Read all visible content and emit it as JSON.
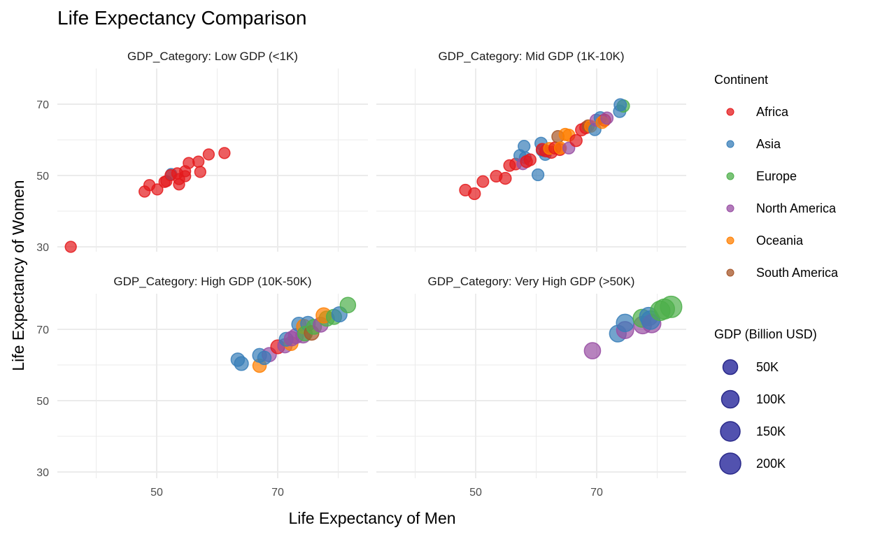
{
  "chart_data": {
    "type": "scatter",
    "title": "Life Expectancy Comparison",
    "xlabel": "Life Expectancy of Men",
    "ylabel": "Life Expectancy of Women",
    "xlim": [
      33,
      85
    ],
    "ylim": [
      29,
      79
    ],
    "x_ticks": [
      50,
      70
    ],
    "y_ticks": [
      30,
      50,
      70
    ],
    "x_tick_labels": [
      "50",
      "70"
    ],
    "y_tick_labels": [
      "30",
      "50",
      "70"
    ],
    "grid": true,
    "facet_variable": "GDP_Category",
    "legend_placement": "right",
    "color_legend": {
      "title": "Continent",
      "entries": [
        {
          "label": "Africa",
          "color": "#e41a1c"
        },
        {
          "label": "Asia",
          "color": "#377eb8"
        },
        {
          "label": "Europe",
          "color": "#4daf4a"
        },
        {
          "label": "North America",
          "color": "#984ea3"
        },
        {
          "label": "Oceania",
          "color": "#ff7f00"
        },
        {
          "label": "South America",
          "color": "#a65628"
        }
      ]
    },
    "size_legend": {
      "title": "GDP (Billion USD)",
      "entries": [
        {
          "label": "50K",
          "value": 50000
        },
        {
          "label": "100K",
          "value": 100000
        },
        {
          "label": "150K",
          "value": 150000
        },
        {
          "label": "200K",
          "value": 200000
        }
      ],
      "fill_color": "#3f3fa6"
    },
    "panels": [
      {
        "strip": "GDP_Category: Low GDP (<1K)",
        "points": [
          {
            "c": "Africa",
            "x": 35.8,
            "y": 30.0,
            "g": 600
          },
          {
            "c": "Africa",
            "x": 48.0,
            "y": 45.5,
            "g": 600
          },
          {
            "c": "Africa",
            "x": 48.8,
            "y": 47.3,
            "g": 600
          },
          {
            "c": "Africa",
            "x": 50.1,
            "y": 46.1,
            "g": 600
          },
          {
            "c": "Africa",
            "x": 51.6,
            "y": 48.4,
            "g": 700
          },
          {
            "c": "Africa",
            "x": 51.3,
            "y": 48.2,
            "g": 700
          },
          {
            "c": "Asia",
            "x": 52.4,
            "y": 50.4,
            "g": 700
          },
          {
            "c": "Africa",
            "x": 52.3,
            "y": 50.1,
            "g": 600
          },
          {
            "c": "Africa",
            "x": 53.4,
            "y": 50.6,
            "g": 600
          },
          {
            "c": "Africa",
            "x": 53.7,
            "y": 47.5,
            "g": 600
          },
          {
            "c": "Africa",
            "x": 53.7,
            "y": 49.0,
            "g": 600
          },
          {
            "c": "Africa",
            "x": 54.7,
            "y": 51.2,
            "g": 600
          },
          {
            "c": "Africa",
            "x": 54.7,
            "y": 49.8,
            "g": 600
          },
          {
            "c": "Africa",
            "x": 55.3,
            "y": 53.5,
            "g": 600
          },
          {
            "c": "Africa",
            "x": 56.9,
            "y": 53.9,
            "g": 600
          },
          {
            "c": "Africa",
            "x": 57.2,
            "y": 51.0,
            "g": 600
          },
          {
            "c": "Africa",
            "x": 58.6,
            "y": 55.9,
            "g": 600
          },
          {
            "c": "Africa",
            "x": 61.2,
            "y": 56.3,
            "g": 600
          }
        ]
      },
      {
        "strip": "GDP_Category: Mid GDP (1K-10K)",
        "points": [
          {
            "c": "Africa",
            "x": 48.3,
            "y": 45.9,
            "g": 2000
          },
          {
            "c": "Africa",
            "x": 49.8,
            "y": 44.9,
            "g": 3000
          },
          {
            "c": "Africa",
            "x": 51.2,
            "y": 48.3,
            "g": 2000
          },
          {
            "c": "Africa",
            "x": 53.4,
            "y": 49.8,
            "g": 2000
          },
          {
            "c": "Africa",
            "x": 54.9,
            "y": 49.2,
            "g": 3000
          },
          {
            "c": "Africa",
            "x": 55.6,
            "y": 52.8,
            "g": 2000
          },
          {
            "c": "Africa",
            "x": 56.6,
            "y": 53.2,
            "g": 2000
          },
          {
            "c": "Asia",
            "x": 57.3,
            "y": 55.6,
            "g": 3000
          },
          {
            "c": "Asia",
            "x": 58.0,
            "y": 58.2,
            "g": 3000
          },
          {
            "c": "Asia",
            "x": 58.2,
            "y": 55.0,
            "g": 3000
          },
          {
            "c": "North America",
            "x": 57.8,
            "y": 53.3,
            "g": 3000
          },
          {
            "c": "Africa",
            "x": 58.4,
            "y": 53.9,
            "g": 3000
          },
          {
            "c": "Africa",
            "x": 59.0,
            "y": 54.4,
            "g": 3000
          },
          {
            "c": "Asia",
            "x": 60.3,
            "y": 50.2,
            "g": 3000
          },
          {
            "c": "Asia",
            "x": 60.8,
            "y": 59.0,
            "g": 5000
          },
          {
            "c": "Asia",
            "x": 61.0,
            "y": 57.0,
            "g": 3000
          },
          {
            "c": "Asia",
            "x": 61.5,
            "y": 55.9,
            "g": 3000
          },
          {
            "c": "Africa",
            "x": 61.0,
            "y": 57.3,
            "g": 4000
          },
          {
            "c": "Africa",
            "x": 61.6,
            "y": 56.9,
            "g": 4000
          },
          {
            "c": "Africa",
            "x": 62.5,
            "y": 56.5,
            "g": 4000
          },
          {
            "c": "Oceania",
            "x": 62.2,
            "y": 57.6,
            "g": 3000
          },
          {
            "c": "Africa",
            "x": 63.1,
            "y": 57.7,
            "g": 4000
          },
          {
            "c": "Africa",
            "x": 63.9,
            "y": 57.3,
            "g": 4000
          },
          {
            "c": "South America",
            "x": 63.6,
            "y": 60.9,
            "g": 5000
          },
          {
            "c": "Oceania",
            "x": 64.0,
            "y": 57.7,
            "g": 4000
          },
          {
            "c": "Oceania",
            "x": 64.8,
            "y": 61.5,
            "g": 5000
          },
          {
            "c": "Oceania",
            "x": 65.4,
            "y": 61.3,
            "g": 4000
          },
          {
            "c": "North America",
            "x": 65.4,
            "y": 57.7,
            "g": 3000
          },
          {
            "c": "Africa",
            "x": 66.6,
            "y": 59.8,
            "g": 4000
          },
          {
            "c": "Africa",
            "x": 67.5,
            "y": 62.8,
            "g": 4000
          },
          {
            "c": "Africa",
            "x": 68.2,
            "y": 63.4,
            "g": 4000
          },
          {
            "c": "South America",
            "x": 68.6,
            "y": 63.9,
            "g": 4000
          },
          {
            "c": "Oceania",
            "x": 69.0,
            "y": 63.8,
            "g": 4000
          },
          {
            "c": "Asia",
            "x": 69.7,
            "y": 62.9,
            "g": 5000
          },
          {
            "c": "North America",
            "x": 69.9,
            "y": 65.5,
            "g": 4000
          },
          {
            "c": "Asia",
            "x": 70.6,
            "y": 66.2,
            "g": 5000
          },
          {
            "c": "Africa",
            "x": 71.3,
            "y": 65.5,
            "g": 5000
          },
          {
            "c": "Oceania",
            "x": 70.9,
            "y": 64.9,
            "g": 5000
          },
          {
            "c": "North America",
            "x": 71.7,
            "y": 66.1,
            "g": 5000
          },
          {
            "c": "Asia",
            "x": 73.8,
            "y": 68.0,
            "g": 6000
          },
          {
            "c": "Europe",
            "x": 74.4,
            "y": 69.5,
            "g": 6000
          },
          {
            "c": "Asia",
            "x": 73.9,
            "y": 69.8,
            "g": 6000
          }
        ]
      },
      {
        "strip": "GDP_Category: High GDP (10K-50K)",
        "points": [
          {
            "c": "Asia",
            "x": 63.4,
            "y": 61.5,
            "g": 15000
          },
          {
            "c": "Asia",
            "x": 64.0,
            "y": 60.4,
            "g": 20000
          },
          {
            "c": "Oceania",
            "x": 67.0,
            "y": 59.8,
            "g": 15000
          },
          {
            "c": "Asia",
            "x": 67.0,
            "y": 62.7,
            "g": 20000
          },
          {
            "c": "North America",
            "x": 68.6,
            "y": 62.9,
            "g": 25000
          },
          {
            "c": "Asia",
            "x": 67.8,
            "y": 62.0,
            "g": 15000
          },
          {
            "c": "Africa",
            "x": 70.0,
            "y": 65.1,
            "g": 20000
          },
          {
            "c": "North America",
            "x": 71.2,
            "y": 65.4,
            "g": 25000
          },
          {
            "c": "Oceania",
            "x": 72.2,
            "y": 66.0,
            "g": 20000
          },
          {
            "c": "Asia",
            "x": 71.4,
            "y": 67.2,
            "g": 20000
          },
          {
            "c": "North America",
            "x": 72.3,
            "y": 67.4,
            "g": 30000
          },
          {
            "c": "North America",
            "x": 73.0,
            "y": 68.1,
            "g": 35000
          },
          {
            "c": "North America",
            "x": 74.2,
            "y": 68.2,
            "g": 30000
          },
          {
            "c": "Asia",
            "x": 73.5,
            "y": 71.4,
            "g": 25000
          },
          {
            "c": "Oceania",
            "x": 74.3,
            "y": 70.8,
            "g": 25000
          },
          {
            "c": "Asia",
            "x": 75.0,
            "y": 71.6,
            "g": 30000
          },
          {
            "c": "Europe",
            "x": 74.5,
            "y": 68.8,
            "g": 30000
          },
          {
            "c": "South America",
            "x": 75.6,
            "y": 69.0,
            "g": 30000
          },
          {
            "c": "Europe",
            "x": 76.0,
            "y": 70.7,
            "g": 35000
          },
          {
            "c": "North America",
            "x": 77.1,
            "y": 71.3,
            "g": 35000
          },
          {
            "c": "Europe",
            "x": 78.1,
            "y": 73.0,
            "g": 40000
          },
          {
            "c": "Oceania",
            "x": 77.6,
            "y": 73.9,
            "g": 40000
          },
          {
            "c": "Europe",
            "x": 79.3,
            "y": 73.5,
            "g": 40000
          },
          {
            "c": "Asia",
            "x": 80.2,
            "y": 74.2,
            "g": 40000
          },
          {
            "c": "Europe",
            "x": 81.6,
            "y": 76.8,
            "g": 45000
          }
        ]
      },
      {
        "strip": "GDP_Category: Very High GDP (>50K)",
        "points": [
          {
            "c": "North America",
            "x": 69.3,
            "y": 64.0,
            "g": 60000
          },
          {
            "c": "Asia",
            "x": 73.5,
            "y": 68.8,
            "g": 70000
          },
          {
            "c": "North America",
            "x": 74.7,
            "y": 69.8,
            "g": 80000
          },
          {
            "c": "Asia",
            "x": 74.7,
            "y": 71.8,
            "g": 90000
          },
          {
            "c": "North America",
            "x": 77.6,
            "y": 71.2,
            "g": 90000
          },
          {
            "c": "Europe",
            "x": 77.5,
            "y": 73.1,
            "g": 100000
          },
          {
            "c": "Asia",
            "x": 78.6,
            "y": 73.6,
            "g": 110000
          },
          {
            "c": "North America",
            "x": 79.1,
            "y": 71.6,
            "g": 110000
          },
          {
            "c": "Asia",
            "x": 78.9,
            "y": 72.6,
            "g": 120000
          },
          {
            "c": "Europe",
            "x": 80.5,
            "y": 75.2,
            "g": 150000
          },
          {
            "c": "Europe",
            "x": 81.2,
            "y": 75.7,
            "g": 170000
          },
          {
            "c": "Europe",
            "x": 82.3,
            "y": 76.3,
            "g": 220000
          }
        ]
      }
    ]
  }
}
